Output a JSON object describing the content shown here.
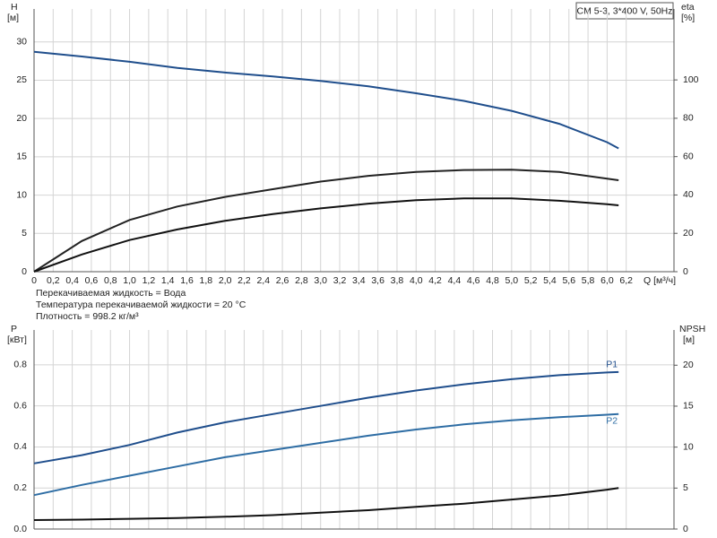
{
  "chart_data": [
    {
      "type": "line",
      "legend_box": "CM 5-3, 3*400 V, 50Hz",
      "y_label": "H",
      "y_unit": "[м]",
      "y2_label": "eta",
      "y2_unit": "[%]",
      "x_label": "Q [м³/ч]",
      "notes": [
        "Перекачиваемая жидкость = Вода",
        "Температура перекачиваемой жидкости = 20 °C",
        "Плотность = 998.2 кг/м³"
      ],
      "grid": true,
      "xlim": [
        0,
        6.7
      ],
      "xticks": [
        0,
        {
          "value": 0.2,
          "label": "0,2"
        },
        {
          "value": 0.4,
          "label": "0,4"
        },
        {
          "value": 0.6,
          "label": "0,6"
        },
        {
          "value": 0.8,
          "label": "0,8"
        },
        {
          "value": 1.0,
          "label": "1,0"
        },
        {
          "value": 1.2,
          "label": "1,2"
        },
        {
          "value": 1.4,
          "label": "1,4"
        },
        {
          "value": 1.6,
          "label": "1,6"
        },
        {
          "value": 1.8,
          "label": "1,8"
        },
        {
          "value": 2.0,
          "label": "2,0"
        },
        {
          "value": 2.2,
          "label": "2,2"
        },
        {
          "value": 2.4,
          "label": "2,4"
        },
        {
          "value": 2.6,
          "label": "2,6"
        },
        {
          "value": 2.8,
          "label": "2,8"
        },
        {
          "value": 3.0,
          "label": "3,0"
        },
        {
          "value": 3.2,
          "label": "3,2"
        },
        {
          "value": 3.4,
          "label": "3,4"
        },
        {
          "value": 3.6,
          "label": "3,6"
        },
        {
          "value": 3.8,
          "label": "3,8"
        },
        {
          "value": 4.0,
          "label": "4,0"
        },
        {
          "value": 4.2,
          "label": "4,2"
        },
        {
          "value": 4.4,
          "label": "4,4"
        },
        {
          "value": 4.6,
          "label": "4,6"
        },
        {
          "value": 4.8,
          "label": "4,8"
        },
        {
          "value": 5.0,
          "label": "5,0"
        },
        {
          "value": 5.2,
          "label": "5,2"
        },
        {
          "value": 5.4,
          "label": "5,4"
        },
        {
          "value": 5.6,
          "label": "5,6"
        },
        {
          "value": 5.8,
          "label": "5,8"
        },
        {
          "value": 6.0,
          "label": "6,0"
        },
        {
          "value": 6.2,
          "label": "6,2"
        }
      ],
      "ylim": [
        0,
        34.3
      ],
      "yticks": [
        0,
        5,
        10,
        15,
        20,
        25,
        30
      ],
      "y2lim": [
        0,
        137
      ],
      "y2ticks": [
        0,
        20,
        40,
        60,
        80,
        100
      ],
      "x": [
        0,
        0.5,
        1,
        1.5,
        2,
        2.5,
        3,
        3.5,
        4,
        4.5,
        5,
        5.5,
        6,
        6.12
      ],
      "series": [
        {
          "color": "#1f4e8c",
          "values": [
            28.7,
            28.1,
            27.4,
            26.6,
            26.0,
            25.5,
            24.9,
            24.2,
            23.3,
            22.3,
            21.0,
            19.3,
            16.9,
            16.1
          ]
        },
        {
          "color": "#222222",
          "axis": "y2",
          "values": [
            0,
            16,
            27,
            34,
            39,
            43,
            47,
            50,
            52,
            53,
            53.2,
            52,
            48.5,
            47.7
          ]
        },
        {
          "color": "#111111",
          "axis": "y2",
          "values": [
            0,
            9,
            16.5,
            22,
            26.5,
            30,
            33,
            35.5,
            37.3,
            38.2,
            38.2,
            37,
            35.2,
            34.6
          ]
        }
      ]
    },
    {
      "type": "line",
      "y_label": "P",
      "y_unit": "[кВт]",
      "y2_label": "NPSH",
      "y2_unit": "[м]",
      "grid": true,
      "xlim": [
        0,
        6.7
      ],
      "xticks": [
        0,
        0.2,
        0.4,
        0.6,
        0.8,
        1.0,
        1.2,
        1.4,
        1.6,
        1.8,
        2.0,
        2.2,
        2.4,
        2.6,
        2.8,
        3.0,
        3.2,
        3.4,
        3.6,
        3.8,
        4.0,
        4.2,
        4.4,
        4.6,
        4.8,
        5.0,
        5.2,
        5.4,
        5.6,
        5.8,
        6.0,
        6.2
      ],
      "ylim": [
        0,
        0.97
      ],
      "yticks": [
        {
          "value": 0,
          "label": "0.0"
        },
        0.2,
        0.4,
        0.6,
        0.8
      ],
      "y2lim": [
        0,
        24.3
      ],
      "y2ticks": [
        0,
        5,
        10,
        15,
        20
      ],
      "x": [
        0,
        0.5,
        1,
        1.5,
        2,
        2.5,
        3,
        3.5,
        4,
        4.5,
        5,
        5.5,
        6,
        6.12
      ],
      "series": [
        {
          "name": "P1",
          "color": "#1f4e8c",
          "values": [
            0.32,
            0.36,
            0.41,
            0.47,
            0.52,
            0.56,
            0.6,
            0.64,
            0.675,
            0.705,
            0.73,
            0.75,
            0.763,
            0.765
          ]
        },
        {
          "name": "P2",
          "color": "#2e6da4",
          "values": [
            0.165,
            0.215,
            0.26,
            0.305,
            0.35,
            0.385,
            0.42,
            0.455,
            0.485,
            0.51,
            0.53,
            0.545,
            0.557,
            0.56
          ]
        },
        {
          "color": "#111111",
          "axis": "y2",
          "values": [
            1.1,
            1.15,
            1.25,
            1.35,
            1.5,
            1.7,
            2.0,
            2.3,
            2.7,
            3.1,
            3.6,
            4.1,
            4.8,
            5.0
          ]
        }
      ]
    }
  ]
}
